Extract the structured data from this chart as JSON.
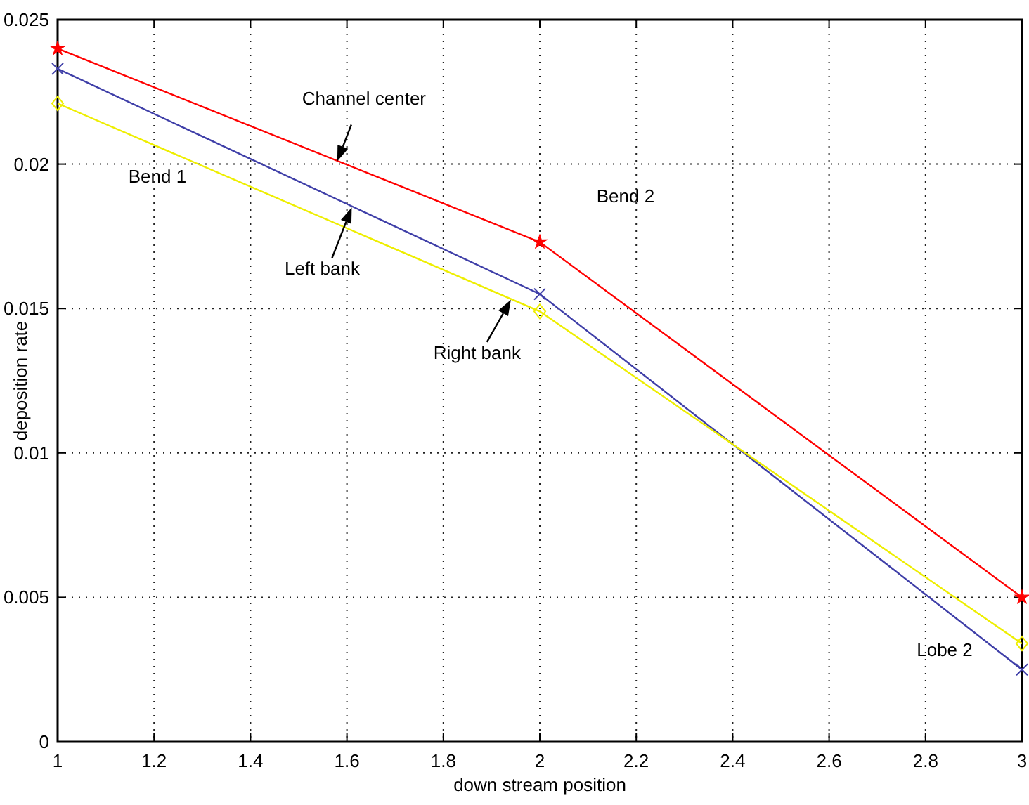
{
  "chart_data": {
    "type": "line",
    "xlabel": "down stream position",
    "ylabel": "deposition rate",
    "x": [
      1,
      2,
      3
    ],
    "series": [
      {
        "color": "#ff0000",
        "marker": "star",
        "values": [
          0.024,
          0.0173,
          0.005
        ]
      },
      {
        "color": "#3f3fa8",
        "marker": "cross",
        "values": [
          0.0233,
          0.0155,
          0.0025
        ]
      },
      {
        "color": "#eeee00",
        "marker": "diamond",
        "values": [
          0.0221,
          0.0149,
          0.0034
        ]
      }
    ],
    "xlim": [
      1,
      3
    ],
    "ylim": [
      0,
      0.025
    ],
    "xticks": [
      1,
      1.2,
      1.4,
      1.6,
      1.8,
      2,
      2.2,
      2.4,
      2.6,
      2.8,
      3
    ],
    "yticks": [
      0,
      0.005,
      0.01,
      0.015,
      0.02,
      0.025
    ],
    "grid": true,
    "line_style": "solid",
    "annotations": [
      {
        "text": "Channel center",
        "x": 1.58,
        "y": 0.0201
      },
      {
        "text": "Left bank",
        "x": 1.61,
        "y": 0.0185
      },
      {
        "text": "Right bank",
        "x": 1.94,
        "y": 0.0153
      },
      "Bend 1",
      "Bend 2",
      "Lobe 2"
    ]
  }
}
